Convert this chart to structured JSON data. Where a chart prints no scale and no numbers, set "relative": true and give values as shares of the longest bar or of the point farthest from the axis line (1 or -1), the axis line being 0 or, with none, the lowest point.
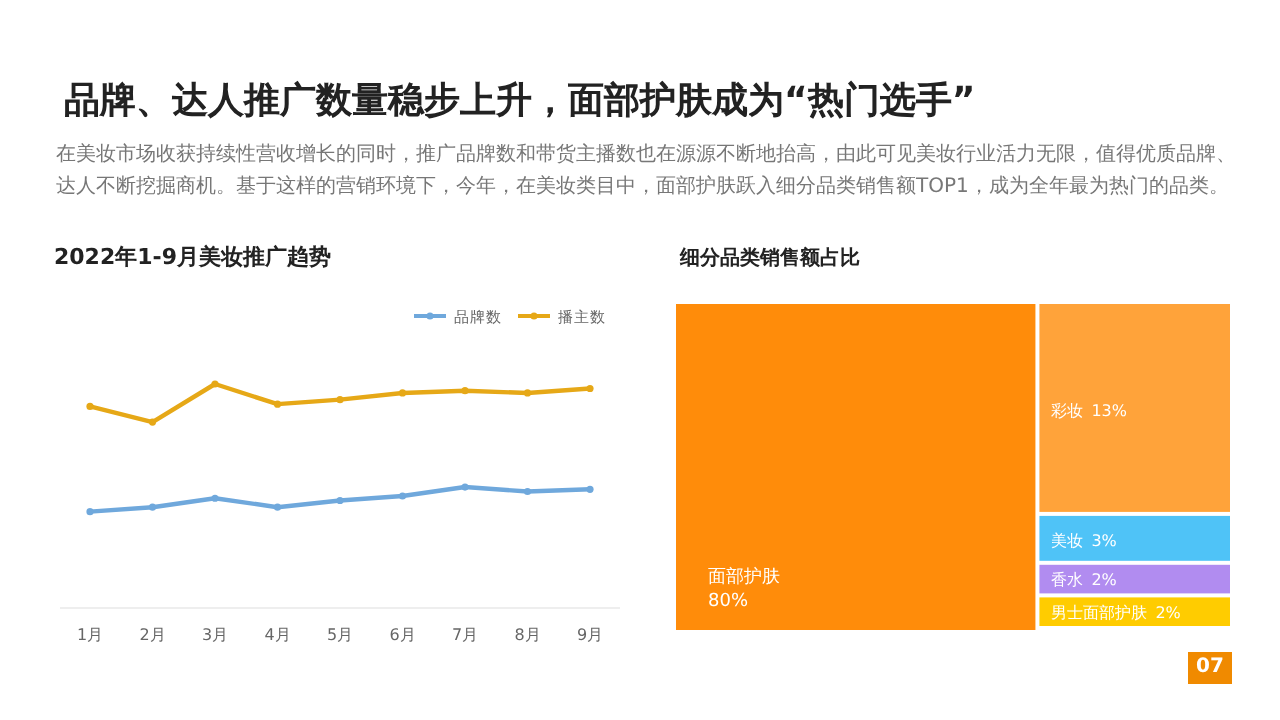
{
  "chart_data": [
    {
      "type": "other",
      "title": "品牌、达人推广数量稳步上升，面部护肤成为“热门选手”",
      "subtitle": "在美妆市场收获持续性营收增长的同时，推广品牌数和带货主播数也在源源不断地抬高，由此可见美妆行业活力无限，值得优质品牌、达人不断挖掘商机。基于这样的营销环境下，今年，在美妆类目中，面部护肤跃入细分品类销售额TOP1，成为全年最为热门的品类。",
      "annotations": [
        "07"
      ]
    },
    {
      "type": "line",
      "title": "2022年1-9月美妆推广趋势",
      "relative": true,
      "legend": "top right",
      "marker": "circle",
      "categories": [
        "1月",
        "2月",
        "3月",
        "4月",
        "5月",
        "6月",
        "7月",
        "8月",
        "9月"
      ],
      "series": [
        {
          "name": "品牌数",
          "color": "#6fa8dc",
          "values": [
            0.43,
            0.45,
            0.49,
            0.45,
            0.48,
            0.5,
            0.54,
            0.52,
            0.53
          ]
        },
        {
          "name": "播主数",
          "color": "#e6a817",
          "values": [
            0.9,
            0.83,
            1,
            0.91,
            0.93,
            0.96,
            0.97,
            0.96,
            0.98
          ]
        }
      ]
    },
    {
      "type": "other",
      "title": "细分品类销售额占比",
      "categories": [
        "面部护肤",
        "彩妆",
        "美妆",
        "香水",
        "男士面部护肤"
      ],
      "values": [
        80,
        13,
        3,
        2,
        2
      ],
      "value_labels": [
        "80%",
        "13%",
        "3%",
        "2%",
        "2%"
      ],
      "colors": [
        "#ff8c0a",
        "#ffa33a",
        "#4fc3f7",
        "#b18cf0",
        "#ffcc00"
      ]
    }
  ]
}
